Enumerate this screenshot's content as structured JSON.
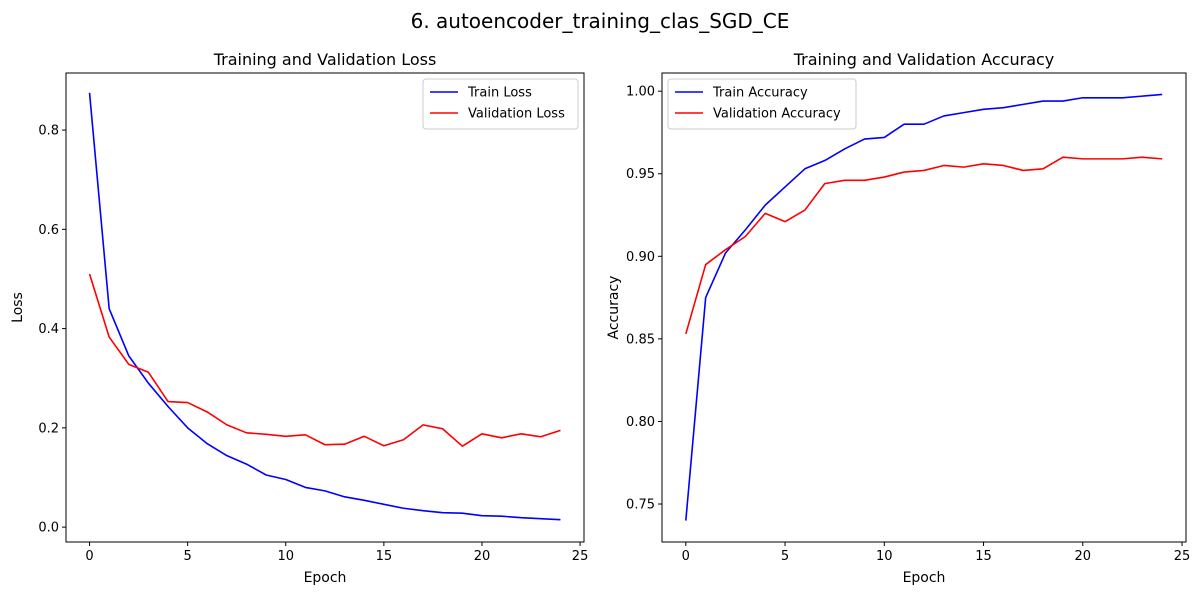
{
  "figure": {
    "title": "6. autoencoder_training_clas_SGD_CE"
  },
  "colors": {
    "train": "#0000ff",
    "validation": "#ff0000"
  },
  "chart_data": [
    {
      "type": "line",
      "title": "Training and Validation Loss",
      "xlabel": "Epoch",
      "ylabel": "Loss",
      "xlim": [
        -1.2,
        25.2
      ],
      "ylim": [
        -0.03,
        0.915
      ],
      "xticks": [
        0,
        5,
        10,
        15,
        20,
        25
      ],
      "xtick_labels": [
        "0",
        "5",
        "10",
        "15",
        "20",
        "25"
      ],
      "yticks": [
        0.0,
        0.2,
        0.4,
        0.6,
        0.8
      ],
      "ytick_labels": [
        "0.0",
        "0.2",
        "0.4",
        "0.6",
        "0.8"
      ],
      "legend_position": "top-right",
      "grid": false,
      "x": [
        0,
        1,
        2,
        3,
        4,
        5,
        6,
        7,
        8,
        9,
        10,
        11,
        12,
        13,
        14,
        15,
        16,
        17,
        18,
        19,
        20,
        21,
        22,
        23,
        24
      ],
      "series": [
        {
          "name": "Train Loss",
          "color": "#0000ff",
          "values": [
            0.875,
            0.44,
            0.345,
            0.29,
            0.243,
            0.2,
            0.168,
            0.144,
            0.127,
            0.105,
            0.096,
            0.08,
            0.073,
            0.061,
            0.054,
            0.046,
            0.038,
            0.033,
            0.029,
            0.028,
            0.023,
            0.022,
            0.019,
            0.017,
            0.015
          ]
        },
        {
          "name": "Validation Loss",
          "color": "#ff0000",
          "values": [
            0.51,
            0.383,
            0.328,
            0.312,
            0.253,
            0.251,
            0.232,
            0.206,
            0.19,
            0.187,
            0.183,
            0.186,
            0.166,
            0.167,
            0.183,
            0.164,
            0.176,
            0.206,
            0.198,
            0.163,
            0.188,
            0.18,
            0.188,
            0.182,
            0.195
          ]
        }
      ]
    },
    {
      "type": "line",
      "title": "Training and Validation Accuracy",
      "xlabel": "Epoch",
      "ylabel": "Accuracy",
      "xlim": [
        -1.2,
        25.2
      ],
      "ylim": [
        0.727,
        1.011
      ],
      "xticks": [
        0,
        5,
        10,
        15,
        20,
        25
      ],
      "xtick_labels": [
        "0",
        "5",
        "10",
        "15",
        "20",
        "25"
      ],
      "yticks": [
        0.75,
        0.8,
        0.85,
        0.9,
        0.95,
        1.0
      ],
      "ytick_labels": [
        "0.75",
        "0.80",
        "0.85",
        "0.90",
        "0.95",
        "1.00"
      ],
      "legend_position": "top-left",
      "grid": false,
      "x": [
        0,
        1,
        2,
        3,
        4,
        5,
        6,
        7,
        8,
        9,
        10,
        11,
        12,
        13,
        14,
        15,
        16,
        17,
        18,
        19,
        20,
        21,
        22,
        23,
        24
      ],
      "series": [
        {
          "name": "Train Accuracy",
          "color": "#0000ff",
          "values": [
            0.74,
            0.875,
            0.902,
            0.916,
            0.931,
            0.942,
            0.953,
            0.958,
            0.965,
            0.971,
            0.972,
            0.98,
            0.98,
            0.985,
            0.987,
            0.989,
            0.99,
            0.992,
            0.994,
            0.994,
            0.996,
            0.996,
            0.996,
            0.997,
            0.998
          ]
        },
        {
          "name": "Validation Accuracy",
          "color": "#ff0000",
          "values": [
            0.853,
            0.895,
            0.904,
            0.912,
            0.926,
            0.921,
            0.928,
            0.944,
            0.946,
            0.946,
            0.948,
            0.951,
            0.952,
            0.955,
            0.954,
            0.956,
            0.955,
            0.952,
            0.953,
            0.96,
            0.959,
            0.959,
            0.959,
            0.96,
            0.959
          ]
        }
      ]
    }
  ]
}
